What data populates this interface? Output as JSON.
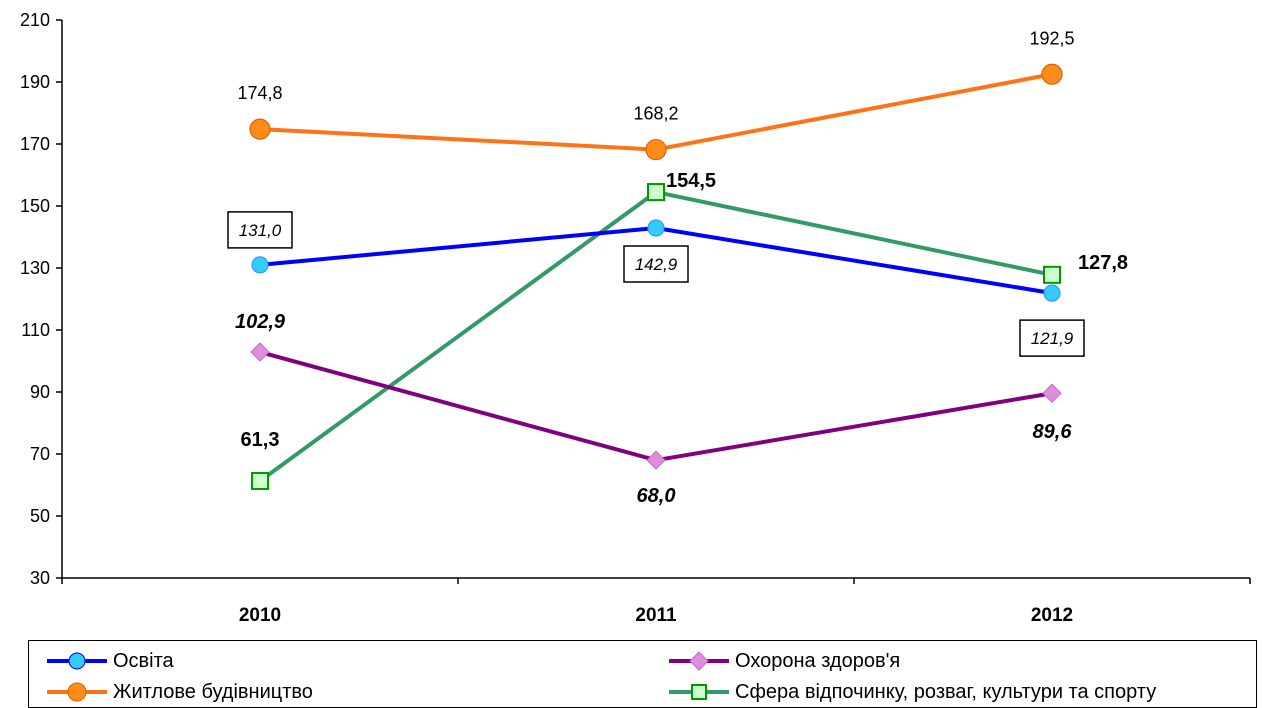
{
  "chart_data": {
    "type": "line",
    "categories": [
      "2010",
      "2011",
      "2012"
    ],
    "ylim": [
      30,
      210
    ],
    "yticks": [
      30,
      50,
      70,
      90,
      110,
      130,
      150,
      170,
      190,
      210
    ],
    "grid": false,
    "legend_position": "bottom",
    "series": [
      {
        "key": "osvita",
        "name": "Освіта",
        "values": [
          131.0,
          142.9,
          121.9
        ],
        "labels": [
          "131,0",
          "142,9",
          "121,9"
        ],
        "color": "#0000ff",
        "marker": "circle",
        "marker_fill": "#33ccff",
        "label_style": "boxed-italic"
      },
      {
        "key": "health",
        "name": "Охорона здоров'я",
        "values": [
          102.9,
          68.0,
          89.6
        ],
        "labels": [
          "102,9",
          "68,0",
          "89,6"
        ],
        "color": "#800080",
        "marker": "diamond",
        "marker_fill": "#e08ce0",
        "label_style": "bold-italic"
      },
      {
        "key": "housing",
        "name": "Житлове будівництво",
        "values": [
          174.8,
          168.2,
          192.5
        ],
        "labels": [
          "174,8",
          "168,2",
          "192,5"
        ],
        "color": "#ff7316",
        "marker": "circle",
        "marker_fill": "#ff8c1a",
        "label_style": "plain"
      },
      {
        "key": "leisure",
        "name": "Сфера відпочинку, розваг, культури та спорту",
        "values": [
          61.3,
          154.5,
          127.8
        ],
        "labels": [
          "61,3",
          "154,5",
          "127,8"
        ],
        "color": "#339966",
        "marker": "square",
        "marker_fill": "#ccffcc",
        "marker_stroke": "#009900",
        "label_style": "bold"
      }
    ]
  }
}
